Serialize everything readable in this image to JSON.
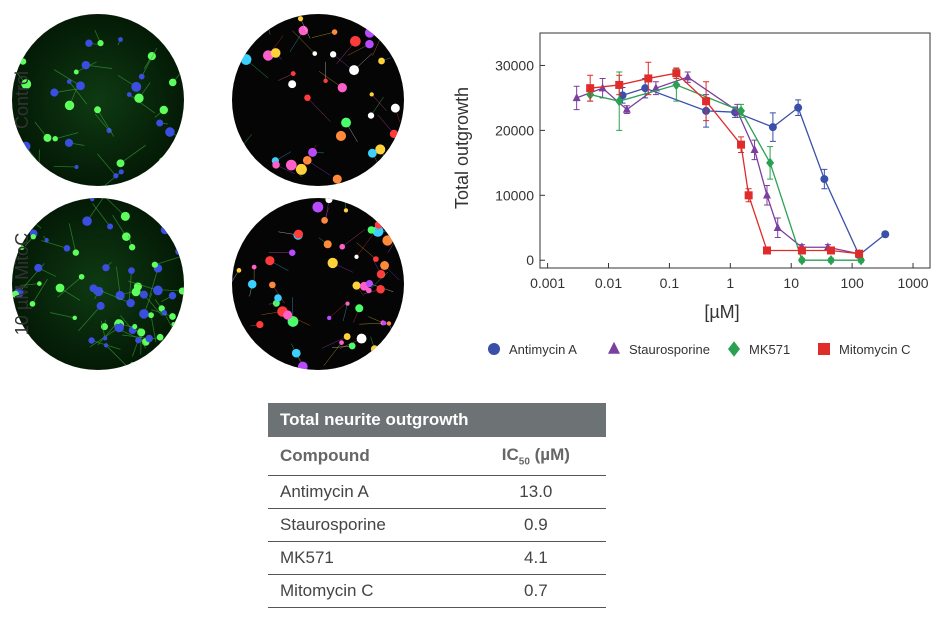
{
  "images": {
    "row_labels": [
      "Control",
      "10 µM MitoC"
    ]
  },
  "chart_data": {
    "type": "scatter",
    "ylabel": "Total outgrowth",
    "xlabel": "[µM]",
    "log_x": true,
    "xlim": [
      0.00075,
      1900
    ],
    "xticks": [
      0.001,
      0.01,
      0.1,
      1,
      10,
      100,
      1000
    ],
    "ylim": [
      -1200,
      35000
    ],
    "yticks": [
      0,
      10000,
      20000,
      30000
    ],
    "legend": "bottom",
    "series": [
      {
        "name": "Antimycin A",
        "color": "#3a4fa8",
        "marker": "circle",
        "x": [
          0.017,
          0.04,
          0.4,
          1.2,
          5,
          13,
          35,
          130,
          350
        ],
        "values": [
          25400,
          26500,
          23000,
          22800,
          20500,
          23500,
          12500,
          800,
          4000
        ],
        "errors": [
          1200,
          1500,
          2500,
          800,
          2200,
          1200,
          1500,
          400,
          300
        ]
      },
      {
        "name": "Staurosporine",
        "color": "#7b3f9e",
        "marker": "triangle",
        "x": [
          0.003,
          0.008,
          0.02,
          0.06,
          0.2,
          1.3,
          2.5,
          4,
          6,
          15,
          40,
          130
        ],
        "values": [
          25000,
          26500,
          23200,
          26500,
          28200,
          23000,
          17000,
          10000,
          5000,
          2000,
          2000,
          1000
        ],
        "errors": [
          1800,
          1500,
          600,
          1000,
          800,
          1000,
          1500,
          1500,
          1500,
          400,
          400,
          300
        ]
      },
      {
        "name": "MK571",
        "color": "#2aa150",
        "marker": "diamond",
        "x": [
          0.005,
          0.015,
          0.13,
          1.5,
          4.5,
          15,
          45,
          140
        ],
        "values": [
          25500,
          24500,
          27000,
          23000,
          15000,
          0,
          0,
          0
        ],
        "errors": [
          1000,
          4500,
          2500,
          1000,
          2500,
          300,
          300,
          300
        ]
      },
      {
        "name": "Mitomycin C",
        "color": "#e02b2b",
        "marker": "square",
        "x": [
          0.005,
          0.015,
          0.045,
          0.13,
          0.4,
          1.5,
          2,
          4,
          15,
          45,
          130
        ],
        "values": [
          26500,
          27000,
          28000,
          28800,
          24500,
          17800,
          10000,
          1500,
          1500,
          1500,
          1000
        ],
        "errors": [
          2000,
          1500,
          2500,
          800,
          3000,
          1200,
          1000,
          300,
          300,
          300,
          300
        ]
      }
    ]
  },
  "table": {
    "title": "Total neurite outgrowth",
    "header": [
      [
        "Compound"
      ],
      [
        "IC",
        "50",
        " (µM)"
      ]
    ],
    "rows": [
      [
        "Antimycin A",
        "13.0"
      ],
      [
        "Staurosporine",
        "0.9"
      ],
      [
        "MK571",
        "4.1"
      ],
      [
        "Mitomycin C",
        "0.7"
      ]
    ]
  }
}
